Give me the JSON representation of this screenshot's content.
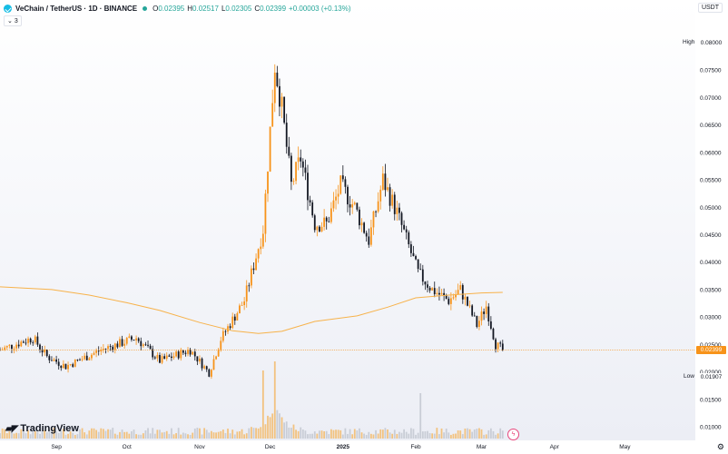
{
  "header": {
    "symbol": "VeChain / TetherUS · 1D · BINANCE",
    "open_label": "O",
    "open": "0.02395",
    "high_label": "H",
    "high": "0.02517",
    "low_label": "L",
    "low": "0.02305",
    "close_label": "C",
    "close": "0.02399",
    "change": "+0.00003 (+0.13%)",
    "indicator_count": "3",
    "currency": "USDT",
    "brand": "TradingView"
  },
  "colors": {
    "up": "#f7931a",
    "down": "#131722",
    "ma_line": "#f7b24a",
    "last_price": "#f7931a",
    "volume_up": "#f2c27f",
    "volume_down": "#c9cdd6"
  },
  "icons": {
    "logo": "vechain-logo-icon",
    "live": "live-dot-icon",
    "collapse": "chevron-down-icon",
    "settings": "gear-icon",
    "flash": "lightning-icon"
  },
  "chart_data": {
    "type": "candlestick",
    "x_tick_labels": [
      "Sep",
      "Oct",
      "Nov",
      "Dec",
      "2025",
      "Feb",
      "Mar",
      "Apr",
      "May"
    ],
    "y_tick_labels": [
      "0.08000",
      "0.07500",
      "0.07000",
      "0.06500",
      "0.06000",
      "0.05500",
      "0.05000",
      "0.04500",
      "0.04000",
      "0.03500",
      "0.03000",
      "0.02500",
      "0.02000",
      "0.01500",
      "0.01000"
    ],
    "ylim": [
      0.0085,
      0.0812
    ],
    "high_marker": {
      "label": "High",
      "value": "0.08000"
    },
    "low_marker": {
      "label": "Low",
      "value": "0.01907"
    },
    "last_price_label": "0.02399",
    "last_price": 0.02399,
    "x_start": "2024-08-08",
    "x_end": "2025-05-31",
    "last_candle_date": "2025-03-10",
    "moving_average": {
      "start_value": 0.0355,
      "points": [
        [
          "2024-08-08",
          0.0355
        ],
        [
          "2024-08-30",
          0.035
        ],
        [
          "2024-09-15",
          0.034
        ],
        [
          "2024-10-01",
          0.0326
        ],
        [
          "2024-10-15",
          0.0312
        ],
        [
          "2024-11-01",
          0.029
        ],
        [
          "2024-11-15",
          0.0275
        ],
        [
          "2024-11-26",
          0.027
        ],
        [
          "2024-12-06",
          0.0274
        ],
        [
          "2024-12-20",
          0.0292
        ],
        [
          "2025-01-07",
          0.0302
        ],
        [
          "2025-01-20",
          0.0318
        ],
        [
          "2025-02-01",
          0.0335
        ],
        [
          "2025-02-15",
          0.034
        ],
        [
          "2025-03-01",
          0.0344
        ],
        [
          "2025-03-10",
          0.0345
        ]
      ]
    },
    "trajectory": [
      [
        "2024-08-08",
        0.024
      ],
      [
        "2024-08-22",
        0.0262
      ],
      [
        "2024-08-28",
        0.0228
      ],
      [
        "2024-09-05",
        0.021
      ],
      [
        "2024-09-20",
        0.024
      ],
      [
        "2024-10-05",
        0.0262
      ],
      [
        "2024-10-15",
        0.022
      ],
      [
        "2024-10-28",
        0.024
      ],
      [
        "2024-11-05",
        0.0198
      ],
      [
        "2024-11-10",
        0.026
      ],
      [
        "2024-11-20",
        0.033
      ],
      [
        "2024-11-28",
        0.046
      ],
      [
        "2024-12-03",
        0.076
      ],
      [
        "2024-12-06",
        0.068
      ],
      [
        "2024-12-10",
        0.054
      ],
      [
        "2024-12-14",
        0.059
      ],
      [
        "2024-12-20",
        0.047
      ],
      [
        "2024-12-25",
        0.047
      ],
      [
        "2024-12-31",
        0.054
      ],
      [
        "2025-01-06",
        0.05
      ],
      [
        "2025-01-12",
        0.044
      ],
      [
        "2025-01-18",
        0.055
      ],
      [
        "2025-01-24",
        0.049
      ],
      [
        "2025-02-02",
        0.038
      ],
      [
        "2025-02-08",
        0.035
      ],
      [
        "2025-02-15",
        0.033
      ],
      [
        "2025-02-20",
        0.035
      ],
      [
        "2025-02-27",
        0.0285
      ],
      [
        "2025-03-03",
        0.032
      ],
      [
        "2025-03-07",
        0.025
      ],
      [
        "2025-03-10",
        0.024
      ]
    ]
  }
}
